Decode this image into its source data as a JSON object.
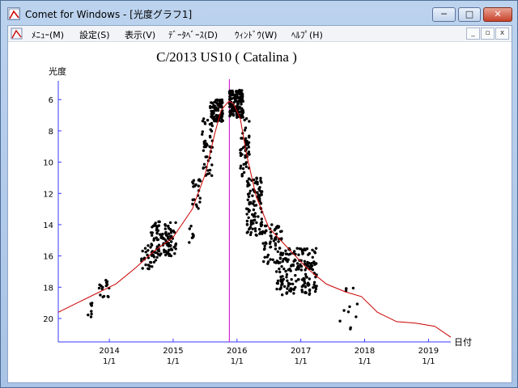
{
  "window": {
    "title": "Comet for Windows - [光度グラフ1]",
    "minimize_label": "─",
    "maximize_label": "□",
    "close_label": "✕"
  },
  "menubar": {
    "items": [
      {
        "label": "ﾒﾆｭｰ(M)"
      },
      {
        "label": "設定(S)"
      },
      {
        "label": "表示(V)"
      },
      {
        "label": "ﾃﾞｰﾀﾍﾞｰｽ(D)"
      },
      {
        "label": "ｳｨﾝﾄﾞｳ(W)"
      },
      {
        "label": "ﾍﾙﾌﾟ(H)"
      }
    ],
    "mdi_minimize": "_",
    "mdi_restore": "▫",
    "mdi_close": "x"
  },
  "chart_data": {
    "type": "scatter",
    "title": "C/2013 US10 ( Catalina )",
    "ylabel": "光度",
    "xlabel": "日付",
    "ylim": [
      21.5,
      4.8
    ],
    "y_ticks": [
      6,
      8,
      10,
      12,
      14,
      16,
      18,
      20
    ],
    "xlim": [
      2013.2,
      2019.35
    ],
    "x_ticks": [
      {
        "year": "2014",
        "date": "1/1",
        "x": 2014.0
      },
      {
        "year": "2015",
        "date": "1/1",
        "x": 2015.0
      },
      {
        "year": "2016",
        "date": "1/1",
        "x": 2016.0
      },
      {
        "year": "2017",
        "date": "1/1",
        "x": 2017.0
      },
      {
        "year": "2018",
        "date": "1/1",
        "x": 2018.0
      },
      {
        "year": "2019",
        "date": "1/1",
        "x": 2019.0
      }
    ],
    "perihelion_x": 2015.88,
    "colors": {
      "axis": "#3a3aff",
      "curve": "#cc0000",
      "marker_line": "#cc00cc",
      "points": "#000000"
    },
    "curve": {
      "x": [
        2013.2,
        2013.5,
        2013.8,
        2014.1,
        2014.4,
        2014.7,
        2015.0,
        2015.3,
        2015.5,
        2015.65,
        2015.75,
        2015.85,
        2015.88,
        2015.95,
        2016.05,
        2016.15,
        2016.3,
        2016.5,
        2016.8,
        2017.1,
        2017.4,
        2017.7,
        2017.95,
        2018.2,
        2018.5,
        2018.8,
        2019.1,
        2019.35
      ],
      "y": [
        19.6,
        19.0,
        18.4,
        17.8,
        16.8,
        15.7,
        14.8,
        13.0,
        10.8,
        8.2,
        6.7,
        6.2,
        6.1,
        6.3,
        7.2,
        9.5,
        12.2,
        14.2,
        15.5,
        16.8,
        17.8,
        18.3,
        18.6,
        19.6,
        20.2,
        20.3,
        20.5,
        21.2
      ]
    },
    "clusters": [
      {
        "x0": 2013.65,
        "x1": 2013.75,
        "y0": 18.8,
        "y1": 19.9,
        "n": 8
      },
      {
        "x0": 2013.82,
        "x1": 2014.0,
        "y0": 17.4,
        "y1": 18.8,
        "n": 16
      },
      {
        "x0": 2014.5,
        "x1": 2014.75,
        "y0": 15.3,
        "y1": 16.9,
        "n": 30
      },
      {
        "x0": 2014.65,
        "x1": 2015.05,
        "y0": 13.8,
        "y1": 16.0,
        "n": 110
      },
      {
        "x0": 2015.25,
        "x1": 2015.32,
        "y0": 14.0,
        "y1": 15.7,
        "n": 8
      },
      {
        "x0": 2015.3,
        "x1": 2015.45,
        "y0": 11.0,
        "y1": 13.0,
        "n": 20
      },
      {
        "x0": 2015.45,
        "x1": 2015.62,
        "y0": 7.2,
        "y1": 11.0,
        "n": 45
      },
      {
        "x0": 2015.58,
        "x1": 2015.78,
        "y0": 6.0,
        "y1": 7.4,
        "n": 90
      },
      {
        "x0": 2015.88,
        "x1": 2016.1,
        "y0": 5.4,
        "y1": 7.2,
        "n": 140
      },
      {
        "x0": 2016.05,
        "x1": 2016.2,
        "y0": 7.0,
        "y1": 11.0,
        "n": 50
      },
      {
        "x0": 2016.15,
        "x1": 2016.4,
        "y0": 11.0,
        "y1": 14.8,
        "n": 110
      },
      {
        "x0": 2016.4,
        "x1": 2016.7,
        "y0": 14.0,
        "y1": 16.5,
        "n": 60
      },
      {
        "x0": 2016.6,
        "x1": 2017.25,
        "y0": 15.5,
        "y1": 18.5,
        "n": 180
      },
      {
        "x0": 2017.6,
        "x1": 2017.9,
        "y0": 18.0,
        "y1": 20.2,
        "n": 10
      },
      {
        "x0": 2017.75,
        "x1": 2017.8,
        "y0": 20.5,
        "y1": 21.0,
        "n": 2
      }
    ]
  }
}
